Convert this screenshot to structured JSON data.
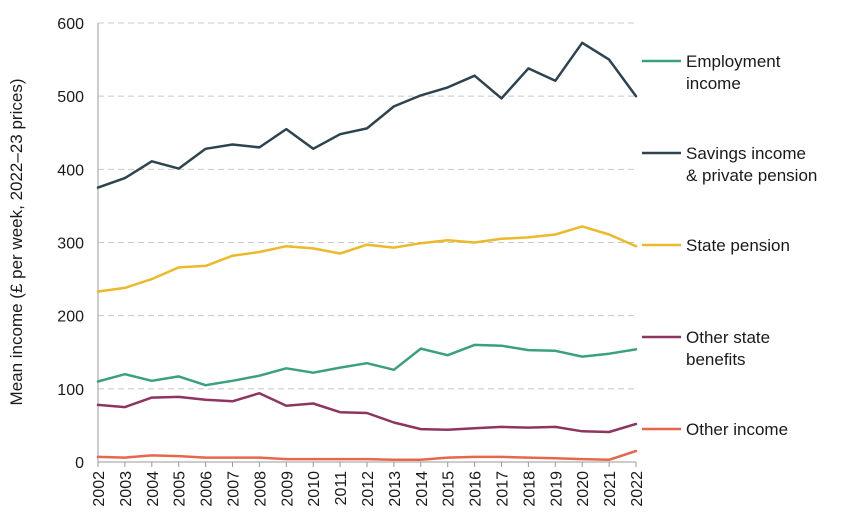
{
  "chart_data": {
    "type": "line",
    "title": "",
    "xlabel": "",
    "ylabel": "Mean income (£ per week, 2022–23 prices)",
    "ylim": [
      0,
      600
    ],
    "yticks": [
      0,
      100,
      200,
      300,
      400,
      500,
      600
    ],
    "grid": true,
    "legend_position": "right",
    "x": [
      "2002",
      "2003",
      "2004",
      "2005",
      "2006",
      "2007",
      "2008",
      "2009",
      "2010",
      "2011",
      "2012",
      "2013",
      "2014",
      "2015",
      "2016",
      "2017",
      "2018",
      "2019",
      "2020",
      "2021",
      "2022"
    ],
    "series": [
      {
        "name": "Savings income & private pension",
        "legend_lines": [
          "Savings income",
          "& private pension"
        ],
        "color": "#2d4450",
        "values": [
          375,
          388,
          411,
          401,
          428,
          434,
          430,
          455,
          428,
          448,
          456,
          486,
          501,
          512,
          528,
          497,
          538,
          521,
          573,
          550,
          500
        ]
      },
      {
        "name": "State pension",
        "legend_lines": [
          "State pension"
        ],
        "color": "#ecb92b",
        "values": [
          233,
          238,
          250,
          266,
          268,
          282,
          287,
          295,
          292,
          285,
          297,
          293,
          299,
          303,
          300,
          305,
          307,
          311,
          322,
          311,
          295
        ]
      },
      {
        "name": "Employment income",
        "legend_lines": [
          "Employment",
          "income"
        ],
        "color": "#3aa17b",
        "values": [
          110,
          120,
          111,
          117,
          105,
          111,
          118,
          128,
          122,
          129,
          135,
          126,
          155,
          146,
          160,
          159,
          153,
          152,
          144,
          148,
          154
        ]
      },
      {
        "name": "Other state benefits",
        "legend_lines": [
          "Other state",
          "benefits"
        ],
        "color": "#8e3460",
        "values": [
          78,
          75,
          88,
          89,
          85,
          83,
          94,
          77,
          80,
          68,
          67,
          54,
          45,
          44,
          46,
          48,
          47,
          48,
          42,
          41,
          52
        ]
      },
      {
        "name": "Other income",
        "legend_lines": [
          "Other income"
        ],
        "color": "#e8674a",
        "values": [
          7,
          6,
          9,
          8,
          6,
          6,
          6,
          4,
          4,
          4,
          4,
          3,
          3,
          6,
          7,
          7,
          6,
          5,
          4,
          3,
          15
        ]
      }
    ]
  }
}
